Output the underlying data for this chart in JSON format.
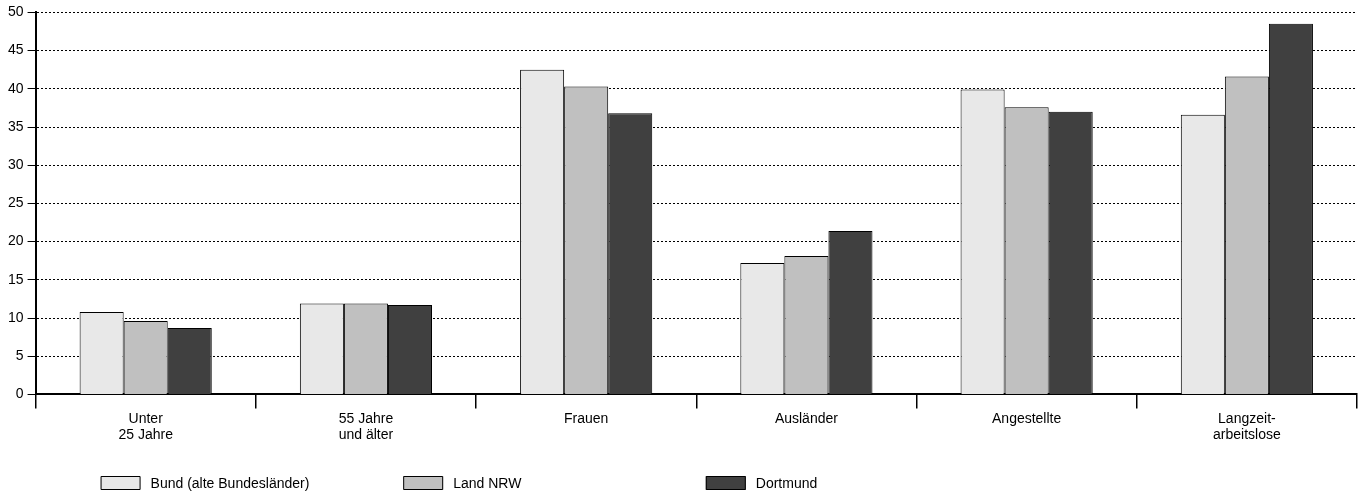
{
  "chart_data": {
    "type": "bar",
    "categories": [
      "Unter\n25 Jahre",
      "55 Jahre\nund älter",
      "Frauen",
      "Ausländer",
      "Angestellte",
      "Langzeit-\narbeitslose"
    ],
    "series": [
      {
        "name": "Bund (alte Bundesländer)",
        "color": "#e8e8e8",
        "values": [
          10.8,
          11.9,
          42.5,
          17.2,
          39.9,
          36.6
        ]
      },
      {
        "name": "Land NRW",
        "color": "#c0c0c0",
        "values": [
          9.6,
          11.9,
          40.3,
          18.1,
          37.6,
          41.6
        ]
      },
      {
        "name": "Dortmund",
        "color": "#404040",
        "values": [
          8.7,
          11.7,
          36.8,
          21.4,
          37.0,
          48.5
        ]
      }
    ],
    "ylim": [
      0,
      50
    ],
    "yticks": [
      0,
      5,
      10,
      15,
      20,
      25,
      30,
      35,
      40,
      45,
      50
    ],
    "grid": "y",
    "legend": "bottom left"
  }
}
